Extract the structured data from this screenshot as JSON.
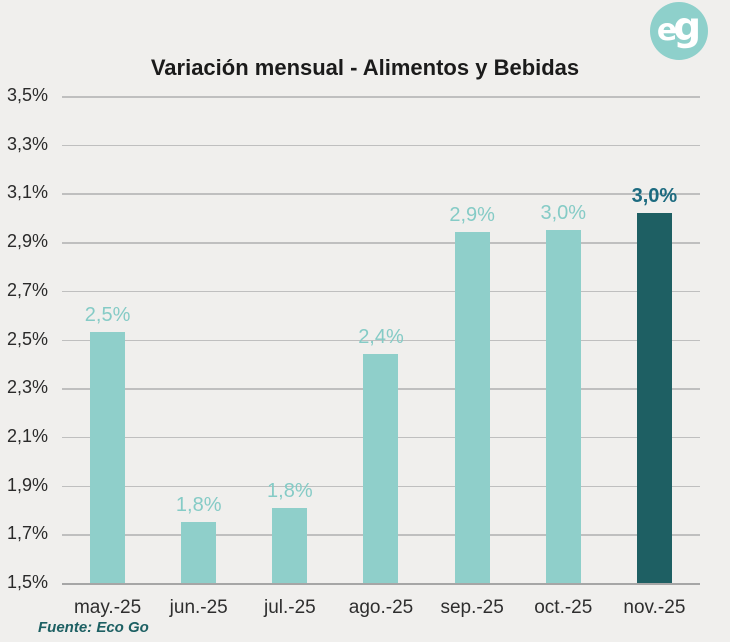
{
  "title": "Variación mensual - Alimentos y Bebidas",
  "source_note": "Fuente: Eco Go",
  "logo": {
    "e": "e",
    "g": "g",
    "bg_color": "#8ed0cb",
    "fg_color": "#ffffff"
  },
  "colors": {
    "background": "#f0efed",
    "gridline": "#bfbfbf",
    "axis_line": "#a6a6a6",
    "title_text": "#1b1b1b",
    "tick_text": "#2a2a2a",
    "source_text": "#1d6063"
  },
  "chart_data": {
    "type": "bar",
    "title": "Variación mensual - Alimentos y Bebidas",
    "xlabel": "",
    "ylabel": "",
    "categories": [
      "may.-25",
      "jun.-25",
      "jul.-25",
      "ago.-25",
      "sep.-25",
      "oct.-25",
      "nov.-25"
    ],
    "values": [
      2.53,
      1.75,
      1.81,
      2.44,
      2.94,
      2.95,
      3.02
    ],
    "labels": [
      "2,5%",
      "1,8%",
      "1,8%",
      "2,4%",
      "2,9%",
      "3,0%",
      "3,0%"
    ],
    "ylim": [
      1.5,
      3.5
    ],
    "ytick_step": 0.2,
    "ytick_labels": [
      "3,5%",
      "3,3%",
      "3,1%",
      "2,9%",
      "2,7%",
      "2,5%",
      "2,3%",
      "2,1%",
      "1,9%",
      "1,7%",
      "1,5%"
    ],
    "grid": true,
    "legend_position": "none",
    "highlight_index": 6,
    "bar_color": "#8fcfca",
    "highlight_bar_color": "#1e5f63",
    "label_color": "#85cbc6",
    "highlight_label_color": "#1d6b80"
  }
}
